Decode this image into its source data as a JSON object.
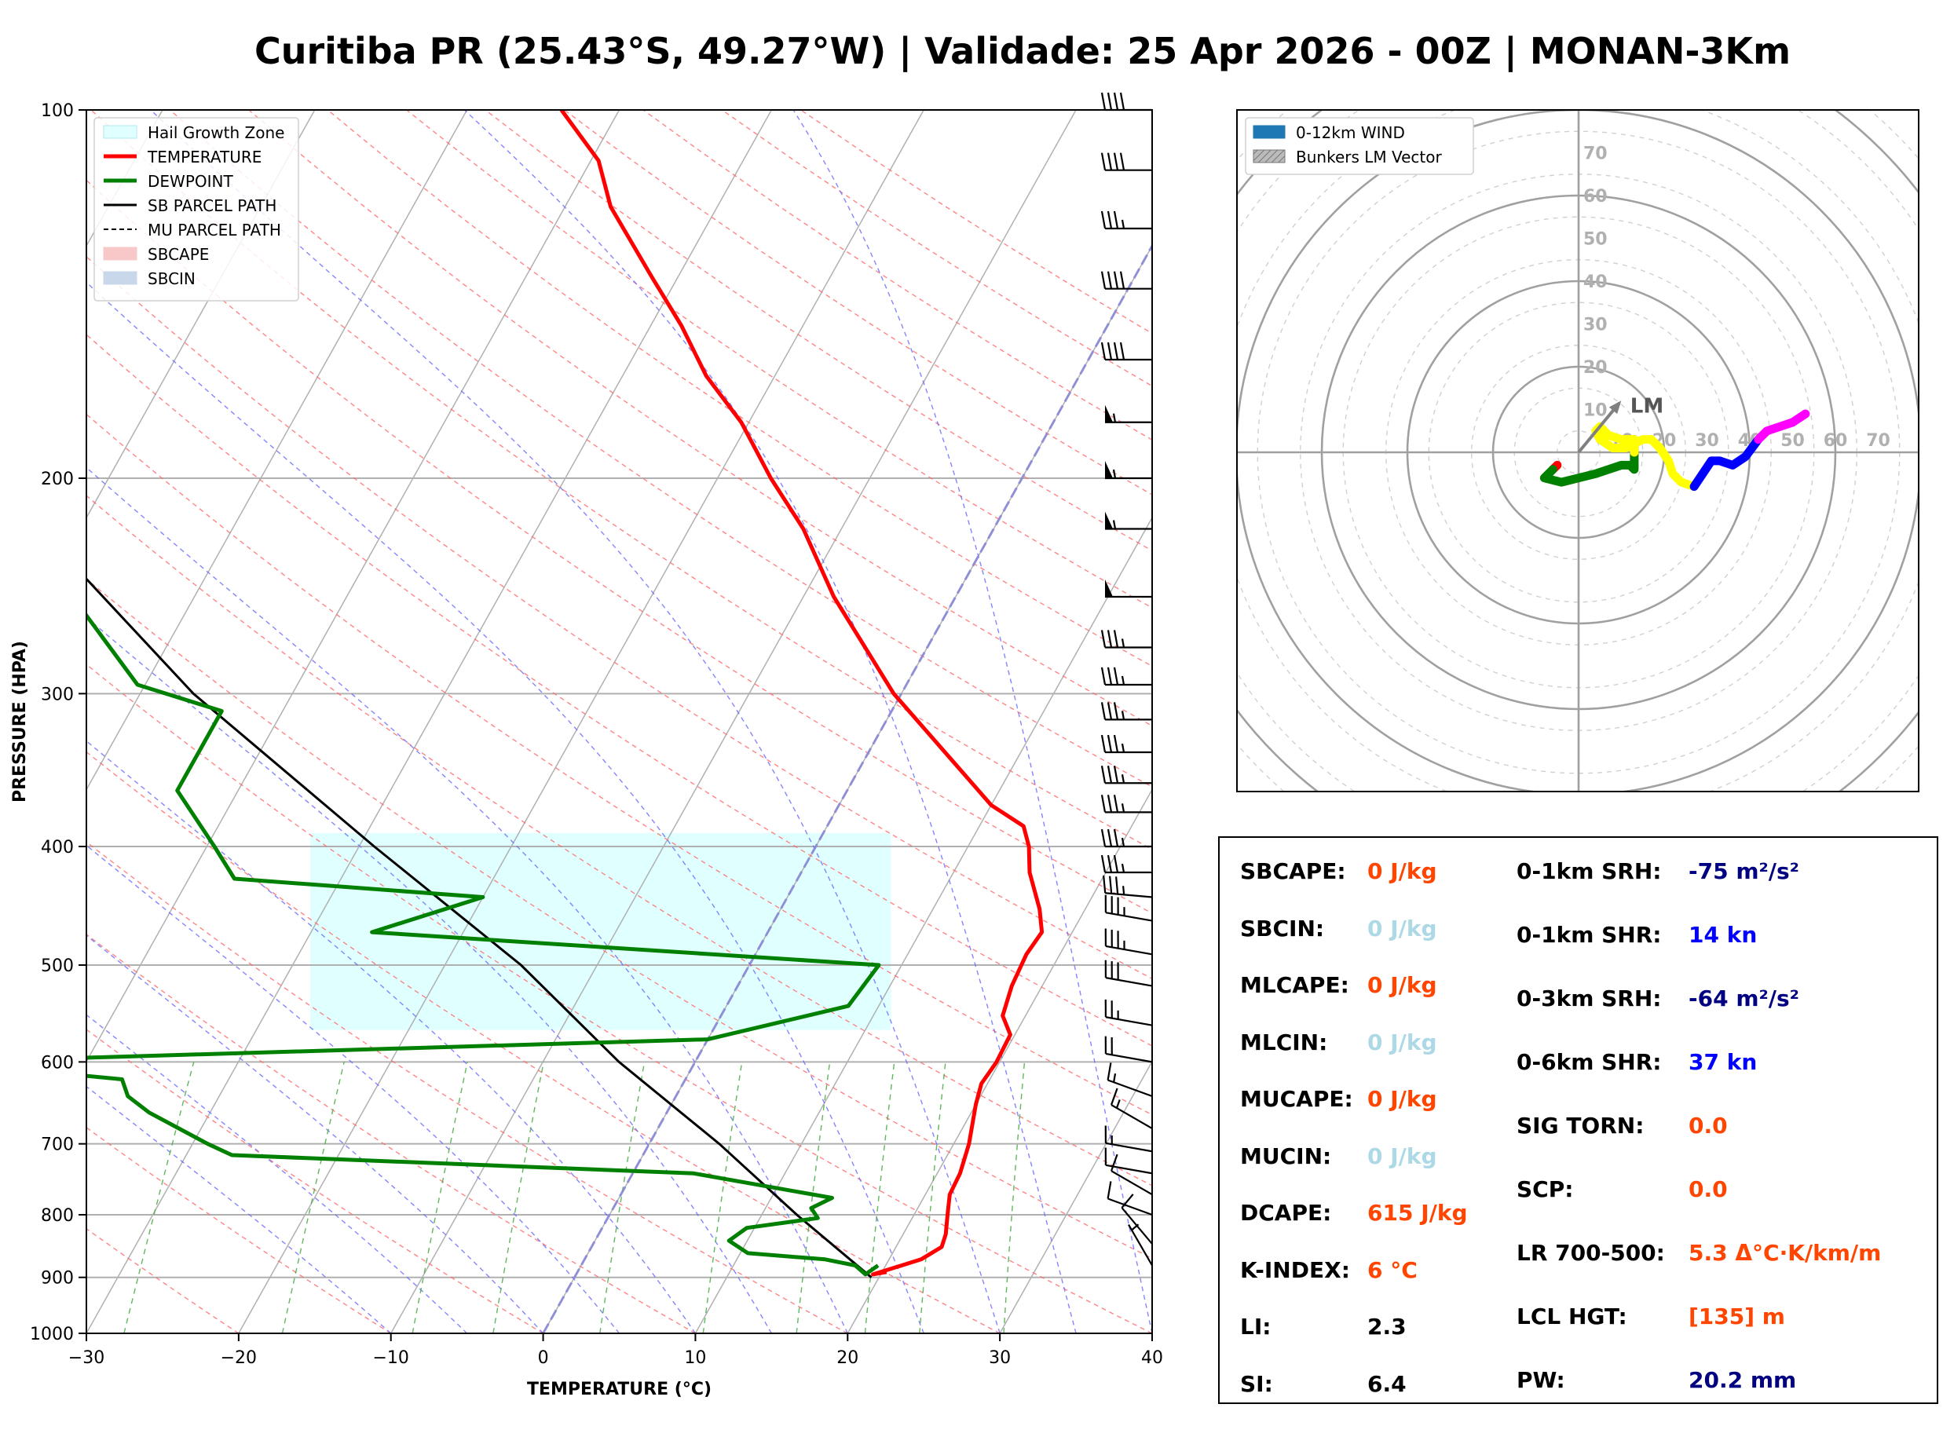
{
  "title": "Curitiba PR (25.43°S, 49.27°W) | Validade: 25 Apr 2026 - 00Z | MONAN-3Km",
  "colors": {
    "temperature": "#ff0000",
    "dewpoint": "#008000",
    "parcel": "#000000",
    "hail": "#e0ffff",
    "isotherm": "#aaaaaa",
    "dry_adiabat": "#ff6666",
    "moist_adiabat": "#6666ff",
    "mixing_ratio": "#44aa44",
    "hodo_0_1": "#ff0000",
    "hodo_1_3": "#008000",
    "hodo_3_6": "#ffff00",
    "hodo_6_9": "#0000ff",
    "hodo_9_12": "#ff00ff",
    "stat_orange": "#ff4500",
    "stat_lightblue": "#add8e6",
    "stat_navy": "#000080",
    "stat_blue": "#0000ff"
  },
  "chart_data": [
    {
      "type": "skew-t",
      "xlabel": "TEMPERATURE (°C)",
      "ylabel": "PRESSURE (HPA)",
      "xlim": [
        -30,
        40
      ],
      "ylim": [
        1000,
        100
      ],
      "skew": 45,
      "x_ticks": [
        -30,
        -20,
        -10,
        0,
        10,
        20,
        30,
        40
      ],
      "x_tick_labels": [
        "−30",
        "−20",
        "−10",
        "0",
        "10",
        "20",
        "30",
        "40"
      ],
      "y_ticks": [
        1000,
        900,
        800,
        700,
        600,
        500,
        400,
        300,
        200,
        100
      ],
      "legend": {
        "placement": "top-left",
        "entries": [
          {
            "label": "Hail Growth Zone",
            "style": "patch",
            "color": "#e0ffff",
            "edge": "#b0e8ee"
          },
          {
            "label": "TEMPERATURE",
            "style": "line",
            "color": "#ff0000",
            "width": 5
          },
          {
            "label": "DEWPOINT",
            "style": "line",
            "color": "#008000",
            "width": 5
          },
          {
            "label": "SB PARCEL PATH",
            "style": "line",
            "color": "#000000",
            "width": 3
          },
          {
            "label": "MU PARCEL PATH",
            "style": "dashed",
            "color": "#000000",
            "width": 2
          },
          {
            "label": "SBCAPE",
            "style": "patch",
            "color": "#f8c8c8",
            "edge": "#f8c8c8"
          },
          {
            "label": "SBCIN",
            "style": "patch",
            "color": "#c8d8ea",
            "edge": "#c8d8ea"
          }
        ]
      },
      "hail_growth_zone": {
        "p_bottom": 565,
        "p_top": 390
      },
      "temperature": [
        {
          "p": 891,
          "t": 20.3
        },
        {
          "p": 895,
          "t": 19.5
        },
        {
          "p": 870,
          "t": 22.1
        },
        {
          "p": 850,
          "t": 23.0
        },
        {
          "p": 830,
          "t": 22.8
        },
        {
          "p": 800,
          "t": 22.2
        },
        {
          "p": 770,
          "t": 21.6
        },
        {
          "p": 740,
          "t": 21.5
        },
        {
          "p": 700,
          "t": 21.0
        },
        {
          "p": 650,
          "t": 20.0
        },
        {
          "p": 625,
          "t": 19.6
        },
        {
          "p": 600,
          "t": 19.8
        },
        {
          "p": 570,
          "t": 19.7
        },
        {
          "p": 550,
          "t": 18.5
        },
        {
          "p": 520,
          "t": 18.0
        },
        {
          "p": 490,
          "t": 17.8
        },
        {
          "p": 470,
          "t": 18.0
        },
        {
          "p": 450,
          "t": 17.0
        },
        {
          "p": 420,
          "t": 15.0
        },
        {
          "p": 400,
          "t": 14.0
        },
        {
          "p": 385,
          "t": 12.9
        },
        {
          "p": 370,
          "t": 10.0
        },
        {
          "p": 300,
          "t": -0.5
        },
        {
          "p": 250,
          "t": -8.0
        },
        {
          "p": 220,
          "t": -12.5
        },
        {
          "p": 200,
          "t": -16.5
        },
        {
          "p": 180,
          "t": -20.5
        },
        {
          "p": 165,
          "t": -24.5
        },
        {
          "p": 150,
          "t": -28.0
        },
        {
          "p": 137,
          "t": -31.7
        },
        {
          "p": 120,
          "t": -37.0
        },
        {
          "p": 110,
          "t": -39.5
        },
        {
          "p": 100,
          "t": -43.8
        }
      ],
      "dewpoint": [
        {
          "p": 880,
          "t": 19.5
        },
        {
          "p": 895,
          "t": 19.0
        },
        {
          "p": 880,
          "t": 18.0
        },
        {
          "p": 870,
          "t": 15.8
        },
        {
          "p": 860,
          "t": 10.5
        },
        {
          "p": 840,
          "t": 8.8
        },
        {
          "p": 820,
          "t": 9.5
        },
        {
          "p": 805,
          "t": 13.8
        },
        {
          "p": 790,
          "t": 13.0
        },
        {
          "p": 775,
          "t": 14.0
        },
        {
          "p": 740,
          "t": 4.0
        },
        {
          "p": 715,
          "t": -27.0
        },
        {
          "p": 700,
          "t": -29.0
        },
        {
          "p": 660,
          "t": -34.0
        },
        {
          "p": 640,
          "t": -36.0
        },
        {
          "p": 620,
          "t": -37.0
        },
        {
          "p": 600,
          "t": -49.5
        },
        {
          "p": 575,
          "t": 0.0
        },
        {
          "p": 540,
          "t": 8.0
        },
        {
          "p": 500,
          "t": 8.5
        },
        {
          "p": 470,
          "t": -26.0
        },
        {
          "p": 440,
          "t": -20.0
        },
        {
          "p": 425,
          "t": -37.0
        },
        {
          "p": 400,
          "t": -39.5
        },
        {
          "p": 360,
          "t": -44.0
        },
        {
          "p": 310,
          "t": -44.0
        },
        {
          "p": 295,
          "t": -50.5
        },
        {
          "p": 250,
          "t": -58.0
        },
        {
          "p": 215,
          "t": -65.5
        },
        {
          "p": 192,
          "t": -73.8
        },
        {
          "p": 168,
          "t": -82.0
        },
        {
          "p": 140,
          "t": -90.0
        },
        {
          "p": 110,
          "t": -92.0
        },
        {
          "p": 100,
          "t": -93.0
        }
      ],
      "sb_parcel": [
        {
          "p": 900,
          "t": 19.5
        },
        {
          "p": 800,
          "t": 12.3
        },
        {
          "p": 700,
          "t": 4.6
        },
        {
          "p": 600,
          "t": -5.0
        },
        {
          "p": 500,
          "t": -15.0
        },
        {
          "p": 400,
          "t": -29.0
        },
        {
          "p": 300,
          "t": -46.5
        },
        {
          "p": 250,
          "t": -56.0
        },
        {
          "p": 200,
          "t": -67.6
        },
        {
          "p": 170,
          "t": -76.0
        },
        {
          "p": 150,
          "t": -82.5
        },
        {
          "p": 120,
          "t": -92.5
        },
        {
          "p": 100,
          "t": -101.0
        }
      ],
      "mu_parcel": [
        {
          "p": 900,
          "t": 19.5
        },
        {
          "p": 800,
          "t": 12.3
        },
        {
          "p": 700,
          "t": 4.6
        },
        {
          "p": 600,
          "t": -5.0
        },
        {
          "p": 500,
          "t": -15.0
        },
        {
          "p": 400,
          "t": -29.0
        },
        {
          "p": 300,
          "t": -46.5
        },
        {
          "p": 250,
          "t": -56.0
        },
        {
          "p": 200,
          "t": -67.6
        },
        {
          "p": 170,
          "t": -76.0
        },
        {
          "p": 150,
          "t": -82.5
        },
        {
          "p": 120,
          "t": -92.5
        },
        {
          "p": 100,
          "t": -101.0
        }
      ],
      "wind_barbs": [
        {
          "p": 880,
          "dir": 330,
          "speed_kt": 5
        },
        {
          "p": 845,
          "dir": 320,
          "speed_kt": 10
        },
        {
          "p": 800,
          "dir": 290,
          "speed_kt": 10
        },
        {
          "p": 770,
          "dir": 300,
          "speed_kt": 10
        },
        {
          "p": 740,
          "dir": 280,
          "speed_kt": 10
        },
        {
          "p": 710,
          "dir": 280,
          "speed_kt": 15
        },
        {
          "p": 680,
          "dir": 300,
          "speed_kt": 15
        },
        {
          "p": 640,
          "dir": 290,
          "speed_kt": 15
        },
        {
          "p": 600,
          "dir": 280,
          "speed_kt": 20
        },
        {
          "p": 560,
          "dir": 280,
          "speed_kt": 25
        },
        {
          "p": 520,
          "dir": 280,
          "speed_kt": 30
        },
        {
          "p": 490,
          "dir": 280,
          "speed_kt": 35
        },
        {
          "p": 460,
          "dir": 280,
          "speed_kt": 35
        },
        {
          "p": 440,
          "dir": 275,
          "speed_kt": 35
        },
        {
          "p": 420,
          "dir": 270,
          "speed_kt": 35
        },
        {
          "p": 400,
          "dir": 270,
          "speed_kt": 35
        },
        {
          "p": 375,
          "dir": 270,
          "speed_kt": 35
        },
        {
          "p": 355,
          "dir": 270,
          "speed_kt": 35
        },
        {
          "p": 335,
          "dir": 270,
          "speed_kt": 35
        },
        {
          "p": 315,
          "dir": 270,
          "speed_kt": 35
        },
        {
          "p": 295,
          "dir": 270,
          "speed_kt": 35
        },
        {
          "p": 275,
          "dir": 270,
          "speed_kt": 35
        },
        {
          "p": 250,
          "dir": 270,
          "speed_kt": 50
        },
        {
          "p": 220,
          "dir": 270,
          "speed_kt": 55
        },
        {
          "p": 200,
          "dir": 270,
          "speed_kt": 55
        },
        {
          "p": 180,
          "dir": 270,
          "speed_kt": 55
        },
        {
          "p": 160,
          "dir": 270,
          "speed_kt": 40
        },
        {
          "p": 140,
          "dir": 270,
          "speed_kt": 40
        },
        {
          "p": 125,
          "dir": 270,
          "speed_kt": 35
        },
        {
          "p": 112,
          "dir": 270,
          "speed_kt": 40
        },
        {
          "p": 100,
          "dir": 270,
          "speed_kt": 40
        }
      ]
    },
    {
      "type": "hodograph",
      "rings": [
        10,
        20,
        30,
        40,
        50,
        60,
        70
      ],
      "ring_labels": [
        "10",
        "20",
        "30",
        "40",
        "50",
        "60",
        "70"
      ],
      "axis_range": [
        -80,
        80
      ],
      "legend": {
        "placement": "top-left",
        "entries": [
          {
            "label": "0-12km WIND",
            "style": "patch",
            "color": "#1f77b4"
          },
          {
            "label": "Bunkers LM Vector",
            "style": "hatch",
            "color": "#aaaaaa"
          }
        ]
      },
      "lm_label": "LM",
      "lm_vector": {
        "u": 9.5,
        "v": 11.5
      },
      "segments": [
        {
          "layer": "0-1km",
          "color": "#ff0000",
          "points": [
            [
              -5,
              -3
            ],
            [
              -6,
              -4
            ]
          ]
        },
        {
          "layer": "1-3km",
          "color": "#008000",
          "points": [
            [
              -6,
              -4
            ],
            [
              -8,
              -6
            ],
            [
              -4,
              -7
            ],
            [
              0,
              -6
            ],
            [
              4,
              -5
            ],
            [
              7,
              -4
            ],
            [
              10,
              -3
            ],
            [
              12,
              -3
            ],
            [
              13,
              -4
            ],
            [
              13,
              -1
            ],
            [
              13,
              3
            ],
            [
              13,
              0
            ]
          ]
        },
        {
          "layer": "3-6km",
          "color": "#ffff00",
          "points": [
            [
              13,
              0
            ],
            [
              13,
              3
            ],
            [
              10,
              3
            ],
            [
              7,
              4
            ],
            [
              5,
              6
            ],
            [
              4,
              5
            ],
            [
              5,
              3
            ],
            [
              8,
              1
            ],
            [
              11,
              1
            ],
            [
              13,
              2
            ],
            [
              15,
              3
            ],
            [
              17,
              3
            ],
            [
              19,
              1
            ],
            [
              21,
              -2
            ],
            [
              22,
              -5
            ],
            [
              24,
              -7
            ],
            [
              27,
              -8
            ]
          ]
        },
        {
          "layer": "6-9km",
          "color": "#0000ff",
          "points": [
            [
              27,
              -8
            ],
            [
              29,
              -5
            ],
            [
              31,
              -2
            ],
            [
              33,
              -2
            ],
            [
              36,
              -3
            ],
            [
              39,
              -1
            ],
            [
              42,
              3
            ]
          ]
        },
        {
          "layer": "9-12km",
          "color": "#ff00ff",
          "points": [
            [
              42,
              3
            ],
            [
              44,
              5
            ],
            [
              47,
              6
            ],
            [
              50,
              7
            ],
            [
              53,
              9
            ]
          ]
        }
      ]
    }
  ],
  "stats": {
    "left": [
      {
        "label": "SBCAPE:",
        "value": "0 J/kg",
        "color": "#ff4500"
      },
      {
        "label": "SBCIN:",
        "value": "0 J/kg",
        "color": "#add8e6"
      },
      {
        "label": "MLCAPE:",
        "value": "0 J/kg",
        "color": "#ff4500"
      },
      {
        "label": "MLCIN:",
        "value": "0 J/kg",
        "color": "#add8e6"
      },
      {
        "label": "MUCAPE:",
        "value": "0 J/kg",
        "color": "#ff4500"
      },
      {
        "label": "MUCIN:",
        "value": "0 J/kg",
        "color": "#add8e6"
      },
      {
        "label": "DCAPE:",
        "value": "615 J/kg",
        "color": "#ff4500"
      },
      {
        "label": "K-INDEX:",
        "value": "6 °C",
        "color": "#ff4500"
      },
      {
        "label": "LI:",
        "value": "2.3",
        "color": "#000000"
      },
      {
        "label": "SI:",
        "value": "6.4",
        "color": "#000000"
      }
    ],
    "right": [
      {
        "label": "0-1km SRH:",
        "value": "-75 m²/s²",
        "color": "#000080"
      },
      {
        "label": "0-1km SHR:",
        "value": "14 kn",
        "color": "#0000ff"
      },
      {
        "label": "0-3km SRH:",
        "value": "-64 m²/s²",
        "color": "#000080"
      },
      {
        "label": "0-6km SHR:",
        "value": "37 kn",
        "color": "#0000ff"
      },
      {
        "label": "SIG TORN:",
        "value": "0.0",
        "color": "#ff4500"
      },
      {
        "label": "SCP:",
        "value": "0.0",
        "color": "#ff4500"
      },
      {
        "label": "LR 700-500:",
        "value": "5.3 Δ°C·K/km/m",
        "color": "#ff4500"
      },
      {
        "label": "LCL HGT:",
        "value": "[135] m",
        "color": "#ff4500"
      },
      {
        "label": "PW:",
        "value": "20.2 mm",
        "color": "#000080"
      }
    ]
  }
}
